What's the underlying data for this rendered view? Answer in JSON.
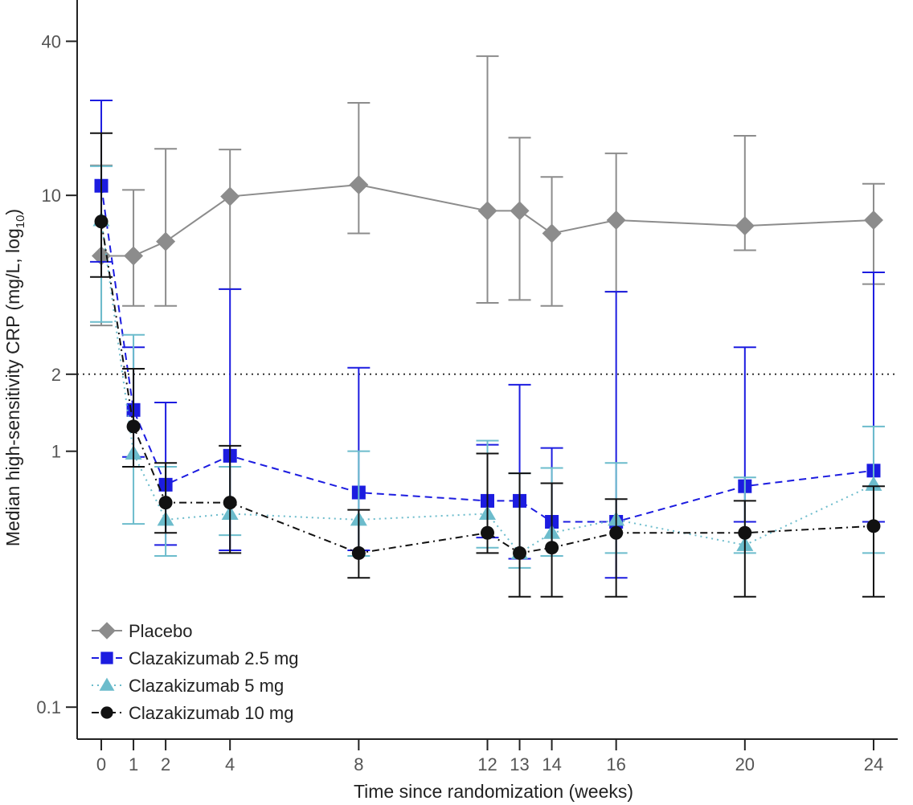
{
  "chart_data": {
    "type": "line",
    "y_scale": "log10",
    "xlabel": "Time since randomization (weeks)",
    "ylabel": "Median high-sensitivity CRP (mg/L, log",
    "ylabel_sub": "10",
    "ylabel_end": ")",
    "x_ticks": [
      0,
      1,
      2,
      4,
      8,
      12,
      13,
      14,
      16,
      20,
      24
    ],
    "y_ticks": [
      0.1,
      1,
      2,
      10,
      40
    ],
    "y_tick_labels": [
      "0.1",
      "1",
      "2",
      "10",
      "40"
    ],
    "xlim": [
      -0.75,
      24.75
    ],
    "ylim": [
      0.075,
      58
    ],
    "reference_line": {
      "y": 2,
      "style": "dotted",
      "color": "#333333"
    },
    "series": [
      {
        "name": "Placebo",
        "color": "#8c8c8c",
        "marker": "diamond",
        "line_style": "solid",
        "points": [
          {
            "x": 0,
            "y": 5.8,
            "lo": 3.1,
            "hi": 13.1
          },
          {
            "x": 1,
            "y": 5.8,
            "lo": 3.7,
            "hi": 10.5
          },
          {
            "x": 2,
            "y": 6.6,
            "lo": 3.7,
            "hi": 15.2
          },
          {
            "x": 4,
            "y": 9.9,
            "lo": 4.3,
            "hi": 15.1
          },
          {
            "x": 8,
            "y": 11.0,
            "lo": 7.1,
            "hi": 23.0
          },
          {
            "x": 12,
            "y": 8.7,
            "lo": 3.8,
            "hi": 35.0
          },
          {
            "x": 13,
            "y": 8.7,
            "lo": 3.9,
            "hi": 16.8
          },
          {
            "x": 14,
            "y": 7.1,
            "lo": 3.7,
            "hi": 11.8
          },
          {
            "x": 16,
            "y": 8.0,
            "lo": 4.2,
            "hi": 14.6
          },
          {
            "x": 20,
            "y": 7.6,
            "lo": 6.1,
            "hi": 17.1
          },
          {
            "x": 24,
            "y": 8.0,
            "lo": 4.5,
            "hi": 11.1
          }
        ]
      },
      {
        "name": "Clazakizumab 2.5 mg",
        "color": "#1c1ce0",
        "marker": "square",
        "line_style": "dashed",
        "points": [
          {
            "x": 0,
            "y": 10.9,
            "lo": 5.5,
            "hi": 23.5
          },
          {
            "x": 1,
            "y": 1.45,
            "lo": 0.95,
            "hi": 2.55
          },
          {
            "x": 2,
            "y": 0.74,
            "lo": 0.43,
            "hi": 1.55
          },
          {
            "x": 4,
            "y": 0.96,
            "lo": 0.41,
            "hi": 4.3
          },
          {
            "x": 8,
            "y": 0.69,
            "lo": 0.41,
            "hi": 2.12
          },
          {
            "x": 12,
            "y": 0.64,
            "lo": 0.46,
            "hi": 1.06
          },
          {
            "x": 13,
            "y": 0.64,
            "lo": 0.38,
            "hi": 1.82
          },
          {
            "x": 14,
            "y": 0.53,
            "lo": 0.39,
            "hi": 1.03
          },
          {
            "x": 16,
            "y": 0.53,
            "lo": 0.32,
            "hi": 4.2
          },
          {
            "x": 20,
            "y": 0.73,
            "lo": 0.53,
            "hi": 2.55
          },
          {
            "x": 24,
            "y": 0.84,
            "lo": 0.53,
            "hi": 5.0
          }
        ]
      },
      {
        "name": "Clazakizumab 5 mg",
        "color": "#6cbccc",
        "marker": "triangle",
        "line_style": "dotted",
        "points": [
          {
            "x": 0,
            "y": 8.0,
            "lo": 3.2,
            "hi": 13.0
          },
          {
            "x": 1,
            "y": 0.98,
            "lo": 0.52,
            "hi": 2.85
          },
          {
            "x": 2,
            "y": 0.54,
            "lo": 0.39,
            "hi": 0.87
          },
          {
            "x": 4,
            "y": 0.57,
            "lo": 0.47,
            "hi": 0.87
          },
          {
            "x": 8,
            "y": 0.54,
            "lo": 0.39,
            "hi": 1.0
          },
          {
            "x": 12,
            "y": 0.57,
            "lo": 0.42,
            "hi": 1.1
          },
          {
            "x": 13,
            "y": 0.4,
            "lo": 0.35,
            "hi": 0.82
          },
          {
            "x": 14,
            "y": 0.48,
            "lo": 0.39,
            "hi": 0.86
          },
          {
            "x": 16,
            "y": 0.54,
            "lo": 0.4,
            "hi": 0.9
          },
          {
            "x": 20,
            "y": 0.43,
            "lo": 0.4,
            "hi": 0.79
          },
          {
            "x": 24,
            "y": 0.74,
            "lo": 0.4,
            "hi": 1.25
          }
        ]
      },
      {
        "name": "Clazakizumab 10 mg",
        "color": "#111111",
        "marker": "circle",
        "line_style": "dashdot",
        "points": [
          {
            "x": 0,
            "y": 7.9,
            "lo": 4.8,
            "hi": 17.5
          },
          {
            "x": 1,
            "y": 1.25,
            "lo": 0.87,
            "hi": 2.1
          },
          {
            "x": 2,
            "y": 0.63,
            "lo": 0.48,
            "hi": 0.9
          },
          {
            "x": 4,
            "y": 0.63,
            "lo": 0.4,
            "hi": 1.05
          },
          {
            "x": 8,
            "y": 0.4,
            "lo": 0.32,
            "hi": 0.59
          },
          {
            "x": 12,
            "y": 0.48,
            "lo": 0.4,
            "hi": 0.98
          },
          {
            "x": 13,
            "y": 0.4,
            "lo": 0.27,
            "hi": 0.82
          },
          {
            "x": 14,
            "y": 0.42,
            "lo": 0.27,
            "hi": 0.75
          },
          {
            "x": 16,
            "y": 0.48,
            "lo": 0.27,
            "hi": 0.65
          },
          {
            "x": 20,
            "y": 0.48,
            "lo": 0.27,
            "hi": 0.64
          },
          {
            "x": 24,
            "y": 0.51,
            "lo": 0.27,
            "hi": 0.73
          }
        ]
      }
    ],
    "legend": {
      "position": "bottom-left",
      "items": [
        "Placebo",
        "Clazakizumab 2.5 mg",
        "Clazakizumab 5 mg",
        "Clazakizumab 10 mg"
      ]
    }
  }
}
